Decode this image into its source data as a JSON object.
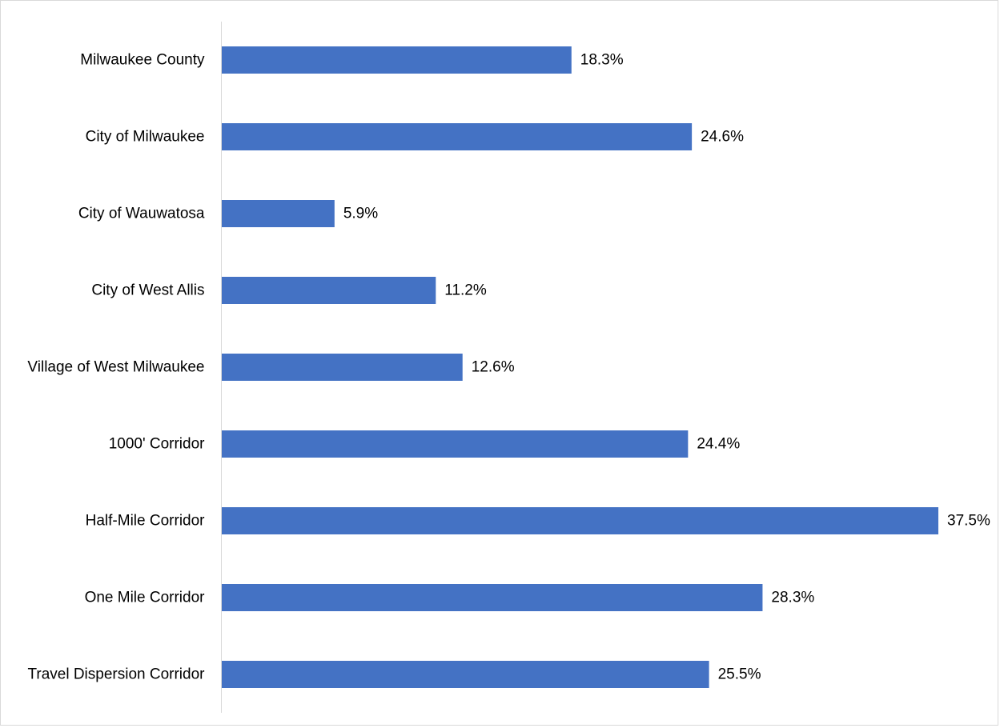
{
  "chart_data": {
    "type": "bar",
    "orientation": "horizontal",
    "categories": [
      "Milwaukee County",
      "City of Milwaukee",
      "City of Wauwatosa",
      "City of West Allis",
      "Village of West Milwaukee",
      "1000' Corridor",
      "Half-Mile Corridor",
      "One Mile Corridor",
      "Travel Dispersion Corridor"
    ],
    "values": [
      18.3,
      24.6,
      5.9,
      11.2,
      12.6,
      24.4,
      37.5,
      28.3,
      25.5
    ],
    "value_labels": [
      "18.3%",
      "24.6%",
      "5.9%",
      "11.2%",
      "12.6%",
      "24.4%",
      "37.5%",
      "28.3%",
      "25.5%"
    ],
    "value_suffix": "%",
    "title": "",
    "xlabel": "",
    "ylabel": "",
    "xlim": [
      0,
      37.5
    ],
    "grid": false,
    "legend": "none",
    "bar_color": "#4472C4",
    "axis_color": "#d9d9d9",
    "text_color": "#000000"
  }
}
